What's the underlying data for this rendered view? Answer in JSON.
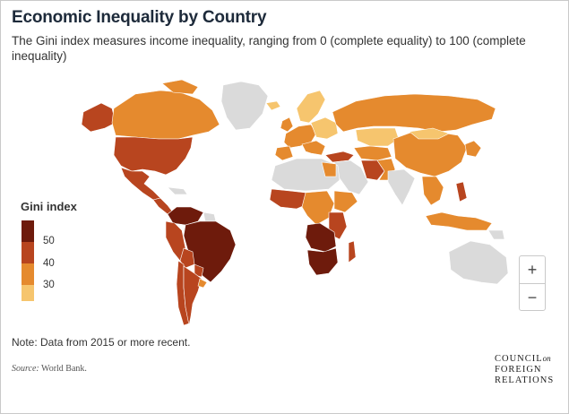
{
  "header": {
    "title": "Economic Inequality by Country",
    "subtitle": "The Gini index measures income inequality, ranging from 0 (complete equality) to 100 (complete inequality)"
  },
  "legend": {
    "title": "Gini index",
    "ticks": [
      "50",
      "40",
      "30"
    ],
    "colors": [
      "#6e1b0c",
      "#b8451f",
      "#e58a2e",
      "#f6c56e"
    ]
  },
  "map": {
    "no_data_color": "#dadada",
    "border_color": "#ffffff",
    "highlighted_regions": [
      {
        "region": "Southern Africa",
        "class": "50+"
      },
      {
        "region": "Brazil",
        "class": "50+"
      },
      {
        "region": "Colombia",
        "class": "50+"
      },
      {
        "region": "United States",
        "class": "40-50"
      },
      {
        "region": "Mexico",
        "class": "40-50"
      },
      {
        "region": "Iran",
        "class": "40-50"
      },
      {
        "region": "Turkey",
        "class": "40-50"
      },
      {
        "region": "Russia",
        "class": "30-40"
      },
      {
        "region": "China",
        "class": "30-40"
      },
      {
        "region": "Canada",
        "class": "30-40"
      },
      {
        "region": "Kazakhstan",
        "class": "below 30"
      }
    ]
  },
  "zoom": {
    "in_icon": "plus-icon",
    "in_label": "+",
    "out_icon": "minus-icon",
    "out_label": "−"
  },
  "footer": {
    "note": "Note: Data from 2015 or more recent.",
    "source_label": "Source:",
    "source_text": " World Bank.",
    "logo_line1": "COUNCIL",
    "logo_on": "on",
    "logo_line2": "FOREIGN",
    "logo_line3": "RELATIONS"
  }
}
